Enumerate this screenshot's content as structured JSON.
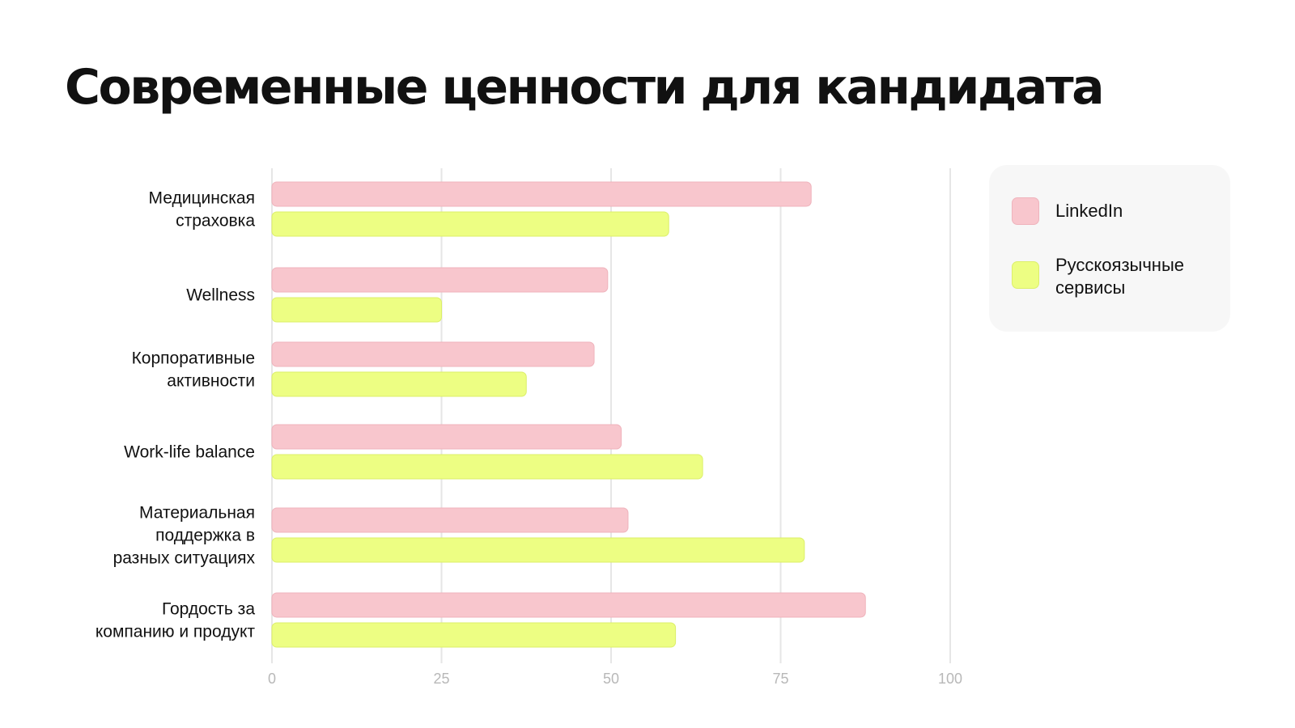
{
  "title": "Современные ценности для кандидата",
  "colors": {
    "linkedin": "#f8c6cd",
    "linkedin_border": "#efb3bc",
    "ru": "#edfe83",
    "ru_border": "#dcef6a",
    "grid": "#e6e6e6",
    "tick_label": "#b8b8b8",
    "legend_bg": "#f7f7f7"
  },
  "chart_data": {
    "type": "bar",
    "orientation": "horizontal",
    "categories": [
      "Медицинская\nстраховка",
      "Wellness",
      "Корпоративные\nактивности",
      "Work-life balance",
      "Материальная\nподдержка в\nразных ситуациях",
      "Гордость за\nкомпанию и продукт"
    ],
    "series": [
      {
        "name": "LinkedIn",
        "values": [
          79.5,
          49.5,
          47.5,
          51.5,
          52.5,
          87.5
        ]
      },
      {
        "name": "Русскоязычные сервисы",
        "values": [
          58.5,
          25,
          37.5,
          63.5,
          78.5,
          59.5
        ]
      }
    ],
    "xlim": [
      0,
      100
    ],
    "xticks": [
      "0",
      "25",
      "50",
      "75",
      "100"
    ],
    "grid": true,
    "legend_position": "top-right"
  }
}
